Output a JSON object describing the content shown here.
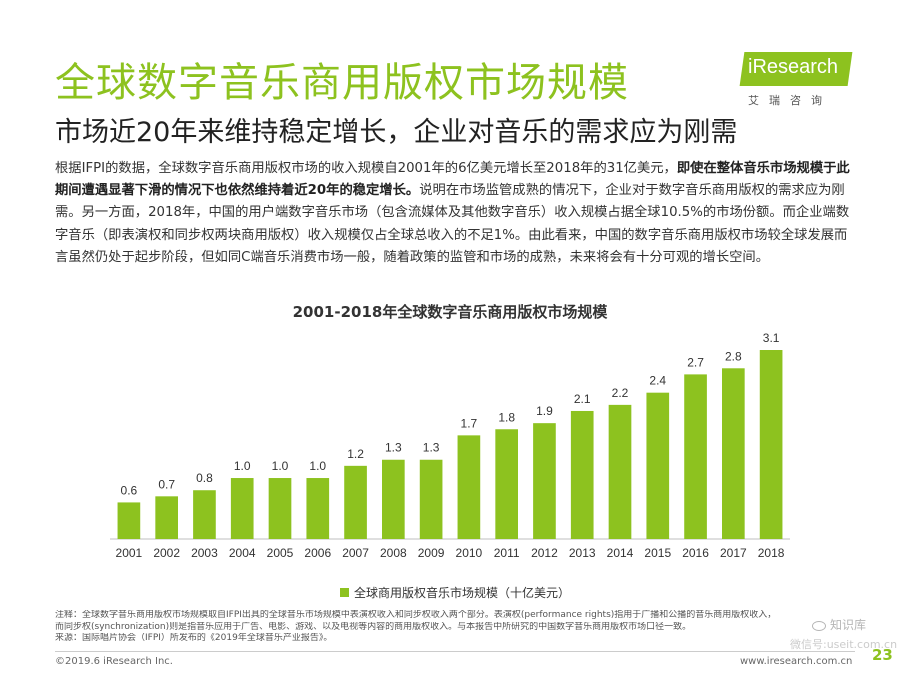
{
  "header": {
    "title": "全球数字音乐商用版权市场规模",
    "subtitle": "市场近20年来维持稳定增长，企业对音乐的需求应为刚需"
  },
  "logo": {
    "name": "iResearch",
    "subtitle": "艾瑞咨询",
    "brand_color": "#8dc21f"
  },
  "intro": {
    "part1": "根据IFPI的数据，全球数字音乐商用版权市场的收入规模自2001年的6亿美元增长至2018年的31亿美元，",
    "bold": "即使在整体音乐市场规模于此期间遭遇显著下滑的情况下也依然维持着近20年的稳定增长。",
    "part2": "说明在市场监管成熟的情况下，企业对于数字音乐商用版权的需求应为刚需。另一方面，2018年，中国的用户端数字音乐市场（包含流媒体及其他数字音乐）收入规模占据全球10.5%的市场份额。而企业端数字音乐（即表演权和同步权两块商用版权）收入规模仅占全球总收入的不足1%。由此看来，中国的数字音乐商用版权市场较全球发展而言虽然仍处于起步阶段，但如同C端音乐消费市场一般，随着政策的监管和市场的成熟，未来将会有十分可观的增长空间。"
  },
  "chart_data": {
    "type": "bar",
    "title": "2001-2018年全球数字音乐商用版权市场规模",
    "categories": [
      "2001",
      "2002",
      "2003",
      "2004",
      "2005",
      "2006",
      "2007",
      "2008",
      "2009",
      "2010",
      "2011",
      "2012",
      "2013",
      "2014",
      "2015",
      "2016",
      "2017",
      "2018"
    ],
    "series": [
      {
        "name": "全球商用版权音乐市场规模（十亿美元）",
        "values": [
          0.6,
          0.7,
          0.8,
          1.0,
          1.0,
          1.0,
          1.2,
          1.3,
          1.3,
          1.7,
          1.8,
          1.9,
          2.1,
          2.2,
          2.4,
          2.7,
          2.8,
          3.1
        ],
        "color": "#8dc21f"
      }
    ],
    "ylim": [
      0,
      3.1
    ],
    "grid": false,
    "legend": "bottom-center"
  },
  "footnote": {
    "line1": "注释：全球数字音乐商用版权市场规模取自IFPI出具的全球音乐市场规模中表演权收入和同步权收入两个部分。表演权(performance rights)指用于广播和公播的音乐商用版权收入，",
    "line2": "而同步权(synchronization)则是指音乐应用于广告、电影、游戏、以及电视等内容的商用版权收入。与本报告中所研究的中国数字音乐商用版权市场口径一致。",
    "line3": "来源：国际唱片协会（IFPI）所发布的《2019年全球音乐产业报告》。"
  },
  "footer": {
    "copyright": "©2019.6 iResearch Inc.",
    "site": "www.iresearch.com.cn",
    "page": "23"
  },
  "watermark": {
    "text1": "知识库",
    "text2": "微信号:useit.com.cn"
  }
}
